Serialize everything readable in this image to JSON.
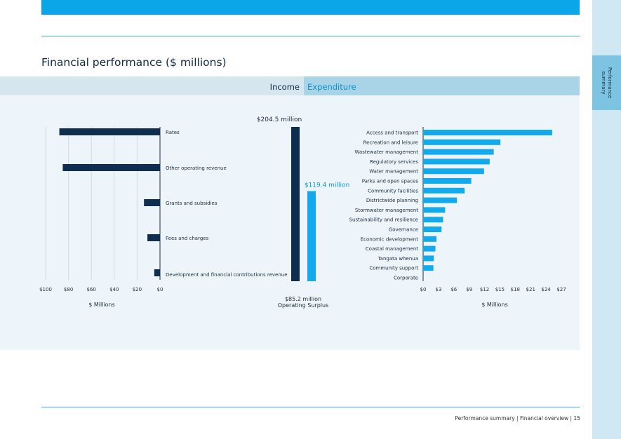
{
  "page": {
    "title": "Financial performance ($ millions)",
    "side_tab": "Performance\nsummary",
    "footer": "Performance summary | Financial overview | 15"
  },
  "toggle": {
    "income": "Income",
    "expenditure": "Expenditure"
  },
  "colors": {
    "navy": "#0f2e4f",
    "cyan": "#13aaeb",
    "cyan_text": "#0a9be0"
  },
  "chart_data": [
    {
      "type": "bar",
      "orientation": "horizontal",
      "direction": "right-to-left",
      "categories": [
        "Rates",
        "Other operating revenue",
        "Grants and subsidies",
        "Fees and charges",
        "Development and financial contributions revenue"
      ],
      "values": [
        88,
        85,
        14,
        11,
        5
      ],
      "xticks": [
        "$100",
        "$80",
        "$60",
        "$40",
        "$20",
        "$0"
      ],
      "xlim": [
        0,
        100
      ],
      "xlabel": "$ Millions"
    },
    {
      "type": "bar",
      "categories": [
        "Income",
        "Expenditure"
      ],
      "values": [
        204.5,
        119.4
      ],
      "labels": [
        "$204.5 million",
        "$119.4 million"
      ],
      "annotation": "$85.2 million",
      "annotation_sub": "Operating Surplus"
    },
    {
      "type": "bar",
      "orientation": "horizontal",
      "categories": [
        "Access and transport",
        "Recreation and leisure",
        "Wastewater management",
        "Regulatory services",
        "Water management",
        "Parks and open spaces",
        "Community facilities",
        "Districtwide planning",
        "Stormwater management",
        "Sustainability and resilience",
        "Governance",
        "Economic development",
        "Coastal management",
        "Tangata whenua",
        "Community support",
        "Corporate"
      ],
      "values": [
        25.2,
        15.1,
        13.8,
        13.0,
        11.9,
        9.4,
        8.1,
        6.6,
        4.3,
        3.9,
        3.6,
        2.6,
        2.4,
        2.1,
        2.0,
        0
      ],
      "xticks": [
        "$0",
        "$3",
        "$6",
        "$9",
        "$12",
        "$15",
        "$18",
        "$21",
        "$24",
        "$27"
      ],
      "xlim": [
        0,
        27
      ],
      "xlabel": "$ Millions"
    }
  ]
}
